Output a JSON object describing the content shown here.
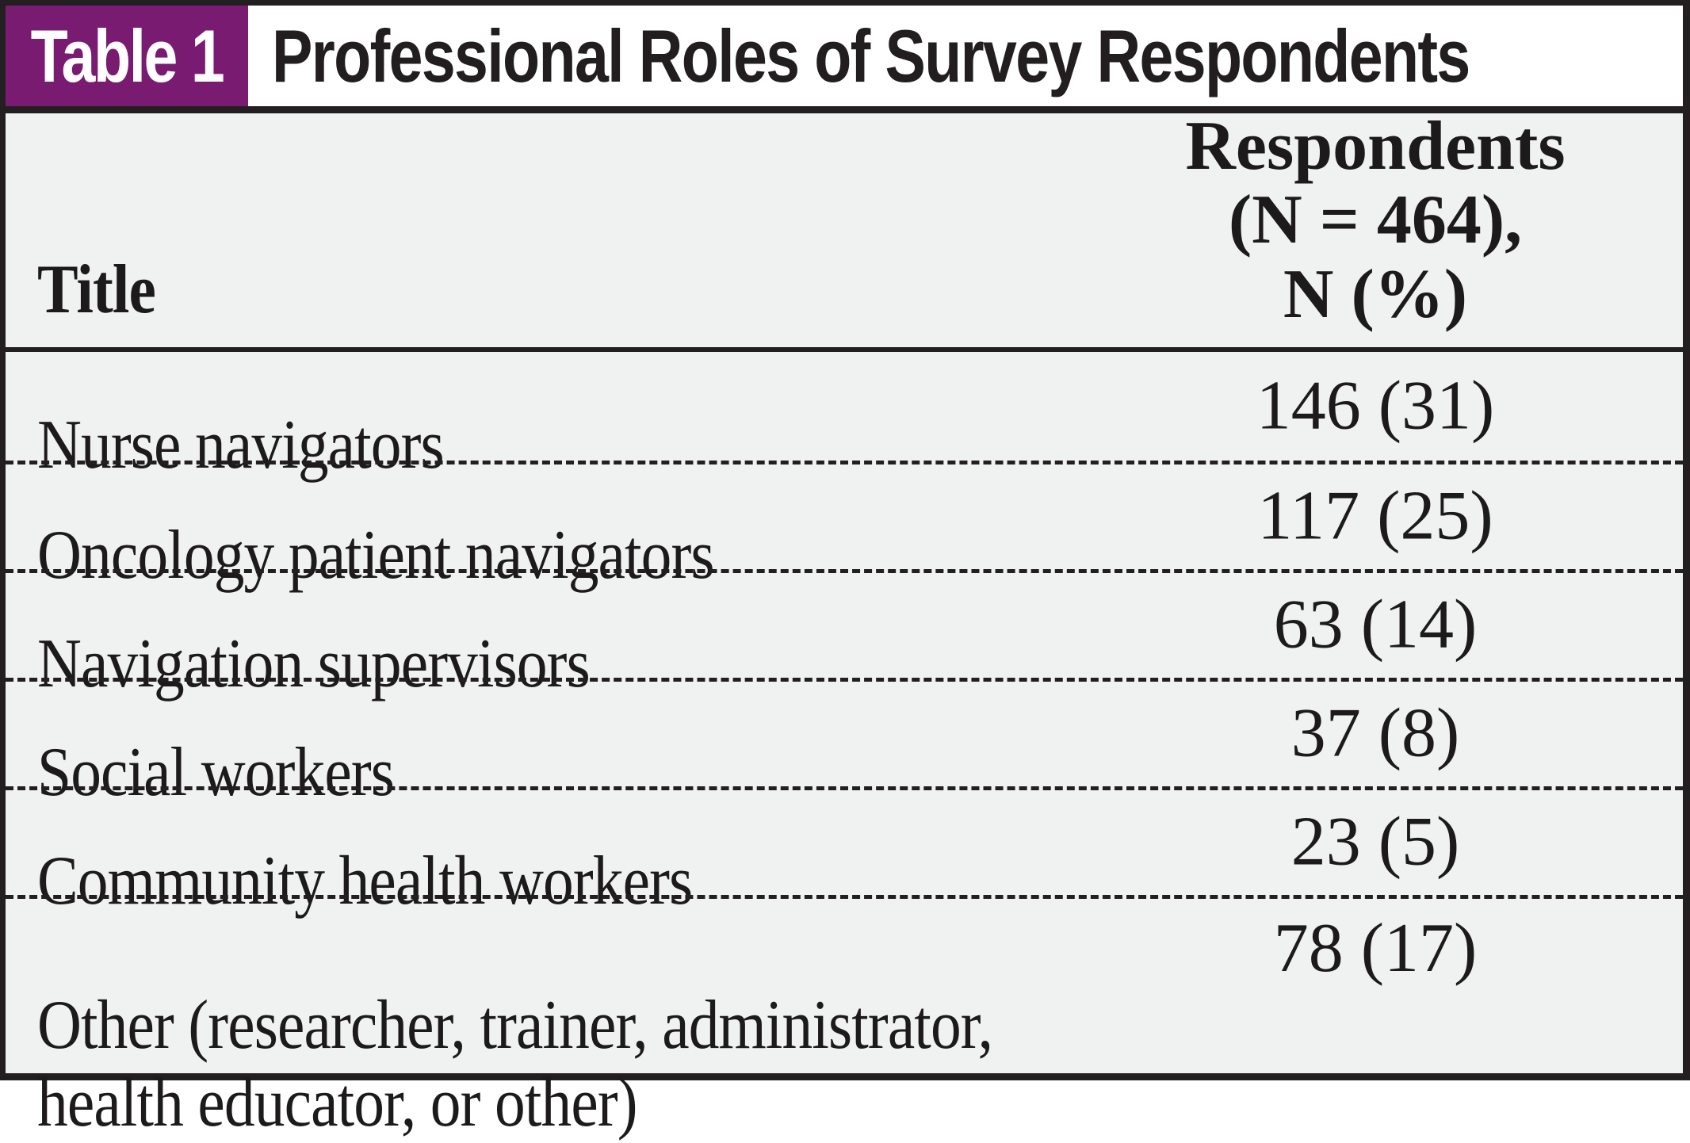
{
  "header": {
    "label": "Table 1",
    "title": "Professional Roles of Survey Respondents"
  },
  "columns": {
    "title": "Title",
    "respondents": "Respondents\n(N = 464),\nN (%)"
  },
  "rows": [
    {
      "title": "Nurse navigators",
      "value": "146 (31)"
    },
    {
      "title": "Oncology patient navigators",
      "value": "117 (25)"
    },
    {
      "title": "Navigation supervisors",
      "value": "63 (14)"
    },
    {
      "title": "Social workers",
      "value": "37 (8)"
    },
    {
      "title": "Community health workers",
      "value": "23 (5)"
    },
    {
      "title": "Other (researcher, trainer, administrator,\nhealth educator, or other)",
      "value": "78 (17)"
    }
  ],
  "colors": {
    "accent_purple": "#7a1b72",
    "frame_black": "#231f20",
    "body_gray": "#f0f1f1"
  }
}
